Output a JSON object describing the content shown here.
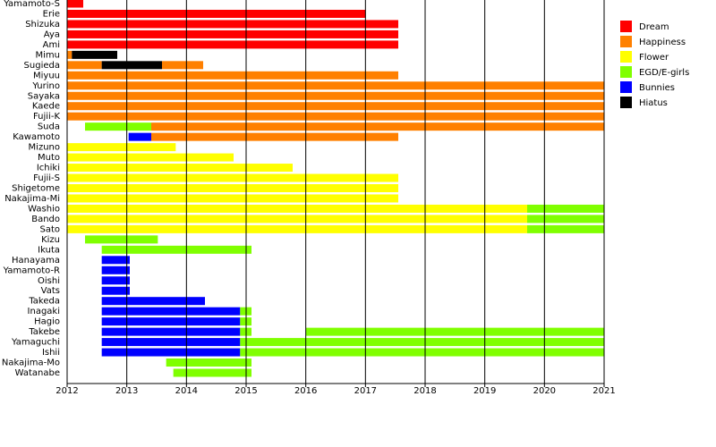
{
  "chart_data": {
    "type": "timeline",
    "xlim": [
      2012,
      2021
    ],
    "xticks": [
      2012,
      2013,
      2014,
      2015,
      2016,
      2017,
      2018,
      2019,
      2020,
      2021
    ],
    "grid": true,
    "legend": "right",
    "series": [
      {
        "name": "Dream",
        "color": "#ff0000"
      },
      {
        "name": "Happiness",
        "color": "#ff8000"
      },
      {
        "name": "Flower",
        "color": "#ffff00"
      },
      {
        "name": "EGD/E-girls",
        "color": "#80ff00"
      },
      {
        "name": "Bunnies",
        "color": "#0000ff"
      },
      {
        "name": "Hiatus",
        "color": "#000000"
      }
    ],
    "rows": [
      {
        "name": "Yamamoto-S",
        "segments": [
          {
            "group": "Dream",
            "start": 2012,
            "end": 2012.27
          }
        ]
      },
      {
        "name": "Erie",
        "segments": [
          {
            "group": "Dream",
            "start": 2012,
            "end": 2017
          }
        ]
      },
      {
        "name": "Shizuka",
        "segments": [
          {
            "group": "Dream",
            "start": 2012,
            "end": 2017.55
          }
        ]
      },
      {
        "name": "Aya",
        "segments": [
          {
            "group": "Dream",
            "start": 2012,
            "end": 2017.55
          }
        ]
      },
      {
        "name": "Ami",
        "segments": [
          {
            "group": "Dream",
            "start": 2012,
            "end": 2017.55
          }
        ]
      },
      {
        "name": "Mimu",
        "segments": [
          {
            "group": "Happiness",
            "start": 2012,
            "end": 2012.08
          },
          {
            "group": "Hiatus",
            "start": 2012.08,
            "end": 2012.84
          }
        ]
      },
      {
        "name": "Sugieda",
        "segments": [
          {
            "group": "Happiness",
            "start": 2012,
            "end": 2012.58
          },
          {
            "group": "Hiatus",
            "start": 2012.58,
            "end": 2013.59
          },
          {
            "group": "Happiness",
            "start": 2013.59,
            "end": 2014.28
          }
        ]
      },
      {
        "name": "Miyuu",
        "segments": [
          {
            "group": "Happiness",
            "start": 2012,
            "end": 2017.55
          }
        ]
      },
      {
        "name": "Yurino",
        "segments": [
          {
            "group": "Happiness",
            "start": 2012,
            "end": 2021
          }
        ]
      },
      {
        "name": "Sayaka",
        "segments": [
          {
            "group": "Happiness",
            "start": 2012,
            "end": 2021
          }
        ]
      },
      {
        "name": "Kaede",
        "segments": [
          {
            "group": "Happiness",
            "start": 2012,
            "end": 2021
          }
        ]
      },
      {
        "name": "Fujii-K",
        "segments": [
          {
            "group": "Happiness",
            "start": 2012,
            "end": 2021
          }
        ]
      },
      {
        "name": "Suda",
        "segments": [
          {
            "group": "EGD/E-girls",
            "start": 2012.3,
            "end": 2013.41
          },
          {
            "group": "Happiness",
            "start": 2013.41,
            "end": 2021
          }
        ]
      },
      {
        "name": "Kawamoto",
        "segments": [
          {
            "group": "Bunnies",
            "start": 2013.03,
            "end": 2013.41
          },
          {
            "group": "Happiness",
            "start": 2013.41,
            "end": 2017.55
          }
        ]
      },
      {
        "name": "Mizuno",
        "segments": [
          {
            "group": "Flower",
            "start": 2012,
            "end": 2013.82
          }
        ]
      },
      {
        "name": "Muto",
        "segments": [
          {
            "group": "Flower",
            "start": 2012,
            "end": 2014.79
          }
        ]
      },
      {
        "name": "Ichiki",
        "segments": [
          {
            "group": "Flower",
            "start": 2012,
            "end": 2015.78
          }
        ]
      },
      {
        "name": "Fujii-S",
        "segments": [
          {
            "group": "Flower",
            "start": 2012,
            "end": 2017.55
          }
        ]
      },
      {
        "name": "Shigetome",
        "segments": [
          {
            "group": "Flower",
            "start": 2012,
            "end": 2017.55
          }
        ]
      },
      {
        "name": "Nakajima-Mi",
        "segments": [
          {
            "group": "Flower",
            "start": 2012,
            "end": 2017.55
          }
        ]
      },
      {
        "name": "Washio",
        "segments": [
          {
            "group": "Flower",
            "start": 2012,
            "end": 2019.71
          },
          {
            "group": "EGD/E-girls",
            "start": 2019.71,
            "end": 2021
          }
        ]
      },
      {
        "name": "Bando",
        "segments": [
          {
            "group": "Flower",
            "start": 2012,
            "end": 2019.71
          },
          {
            "group": "EGD/E-girls",
            "start": 2019.71,
            "end": 2021
          }
        ]
      },
      {
        "name": "Sato",
        "segments": [
          {
            "group": "Flower",
            "start": 2012,
            "end": 2019.71
          },
          {
            "group": "EGD/E-girls",
            "start": 2019.71,
            "end": 2021
          }
        ]
      },
      {
        "name": "Kizu",
        "segments": [
          {
            "group": "EGD/E-girls",
            "start": 2012.3,
            "end": 2013.52
          }
        ]
      },
      {
        "name": "Ikuta",
        "segments": [
          {
            "group": "EGD/E-girls",
            "start": 2012.58,
            "end": 2015.09
          }
        ]
      },
      {
        "name": "Hanayama",
        "segments": [
          {
            "group": "Bunnies",
            "start": 2012.58,
            "end": 2013.05
          }
        ]
      },
      {
        "name": "Yamamoto-R",
        "segments": [
          {
            "group": "Bunnies",
            "start": 2012.58,
            "end": 2013.05
          }
        ]
      },
      {
        "name": "Oishi",
        "segments": [
          {
            "group": "Bunnies",
            "start": 2012.58,
            "end": 2013.05
          }
        ]
      },
      {
        "name": "Vats",
        "segments": [
          {
            "group": "Bunnies",
            "start": 2012.58,
            "end": 2013.05
          }
        ]
      },
      {
        "name": "Takeda",
        "segments": [
          {
            "group": "Bunnies",
            "start": 2012.58,
            "end": 2014.31
          }
        ]
      },
      {
        "name": "Inagaki",
        "segments": [
          {
            "group": "Bunnies",
            "start": 2012.58,
            "end": 2014.9
          },
          {
            "group": "EGD/E-girls",
            "start": 2014.9,
            "end": 2015.09
          }
        ]
      },
      {
        "name": "Hagio",
        "segments": [
          {
            "group": "Bunnies",
            "start": 2012.58,
            "end": 2014.9
          },
          {
            "group": "EGD/E-girls",
            "start": 2014.9,
            "end": 2015.09
          }
        ]
      },
      {
        "name": "Takebe",
        "segments": [
          {
            "group": "Bunnies",
            "start": 2012.58,
            "end": 2014.9
          },
          {
            "group": "EGD/E-girls",
            "start": 2014.9,
            "end": 2015.09
          },
          {
            "group": "EGD/E-girls",
            "start": 2016,
            "end": 2021
          }
        ]
      },
      {
        "name": "Yamaguchi",
        "segments": [
          {
            "group": "Bunnies",
            "start": 2012.58,
            "end": 2014.9
          },
          {
            "group": "EGD/E-girls",
            "start": 2014.9,
            "end": 2021
          }
        ]
      },
      {
        "name": "Ishii",
        "segments": [
          {
            "group": "Bunnies",
            "start": 2012.58,
            "end": 2014.9
          },
          {
            "group": "EGD/E-girls",
            "start": 2014.9,
            "end": 2021
          }
        ]
      },
      {
        "name": "Nakajima-Mo",
        "segments": [
          {
            "group": "EGD/E-girls",
            "start": 2013.66,
            "end": 2015.09
          }
        ]
      },
      {
        "name": "Watanabe",
        "segments": [
          {
            "group": "EGD/E-girls",
            "start": 2013.78,
            "end": 2015.09
          }
        ]
      }
    ]
  }
}
